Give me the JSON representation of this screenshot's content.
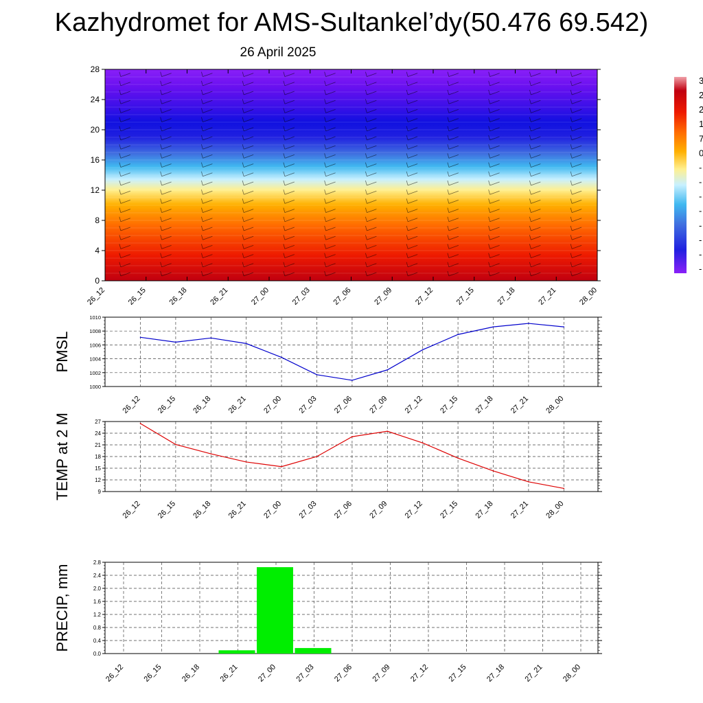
{
  "title": "Kazhydromet for AMS-Sultankel’dy(50.476 69.542)",
  "subtitle": "26 April 2025",
  "time_labels": [
    "26_12",
    "26_15",
    "26_18",
    "26_21",
    "27_00",
    "27_03",
    "27_06",
    "27_09",
    "27_12",
    "27_15",
    "27_18",
    "27_21",
    "28_00"
  ],
  "colorbar_labels": [
    "3",
    "2",
    "2",
    "1",
    "7",
    "0",
    "-",
    "-",
    "-",
    "-",
    "-",
    "-",
    "-",
    "-"
  ],
  "colors": {
    "pmsl_line": "#0000cc",
    "temp_line": "#dd0000",
    "precip_bar": "#00ee00"
  },
  "chart_data": [
    {
      "type": "heatmap",
      "name": "vertical cross-section",
      "title": "",
      "xlabel": "",
      "ylabel": "",
      "categories": [
        "26_12",
        "26_15",
        "26_18",
        "26_21",
        "27_00",
        "27_03",
        "27_06",
        "27_09",
        "27_12",
        "27_15",
        "27_18",
        "27_21",
        "28_00"
      ],
      "yticks": [
        0,
        4,
        8,
        12,
        16,
        20,
        24,
        28
      ],
      "ylim": [
        0,
        28
      ],
      "colorbar": "right",
      "grid": false
    },
    {
      "type": "line",
      "ylabel": "PMSL",
      "categories": [
        "26_12",
        "26_15",
        "26_18",
        "26_21",
        "27_00",
        "27_03",
        "27_06",
        "27_09",
        "27_12",
        "27_15",
        "27_18",
        "27_21",
        "28_00"
      ],
      "values": [
        1007.1,
        1006.4,
        1007.0,
        1006.2,
        1004.2,
        1001.7,
        1000.9,
        1002.4,
        1005.3,
        1007.5,
        1008.6,
        1009.1,
        1008.6
      ],
      "ylim": [
        1000,
        1010
      ],
      "yticks": [
        1000,
        1002,
        1004,
        1006,
        1008,
        1010
      ],
      "grid": true
    },
    {
      "type": "line",
      "ylabel": "TEMP at 2 M",
      "categories": [
        "26_12",
        "26_15",
        "26_18",
        "26_21",
        "27_00",
        "27_03",
        "27_06",
        "27_09",
        "27_12",
        "27_15",
        "27_18",
        "27_21",
        "28_00"
      ],
      "values": [
        26.5,
        21.1,
        18.7,
        16.6,
        15.4,
        18.0,
        23.1,
        24.5,
        21.5,
        17.6,
        14.3,
        11.5,
        9.8
      ],
      "ylim": [
        9,
        27
      ],
      "yticks": [
        9,
        12,
        15,
        18,
        21,
        24,
        27
      ],
      "grid": true
    },
    {
      "type": "bar",
      "ylabel": "PRECIP, mm",
      "categories": [
        "26_12",
        "26_15",
        "26_18",
        "26_21",
        "27_00",
        "27_03",
        "27_06",
        "27_09",
        "27_12",
        "27_15",
        "27_18",
        "27_21",
        "28_00"
      ],
      "values": [
        0,
        0,
        0,
        0.1,
        2.65,
        0.17,
        0,
        0,
        0,
        0,
        0,
        0,
        0
      ],
      "ylim": [
        0,
        2.8
      ],
      "yticks": [
        "0.0",
        "0.4",
        "0.8",
        "1.2",
        "1.6",
        "2.0",
        "2.4",
        "2.8"
      ],
      "grid": true
    }
  ]
}
